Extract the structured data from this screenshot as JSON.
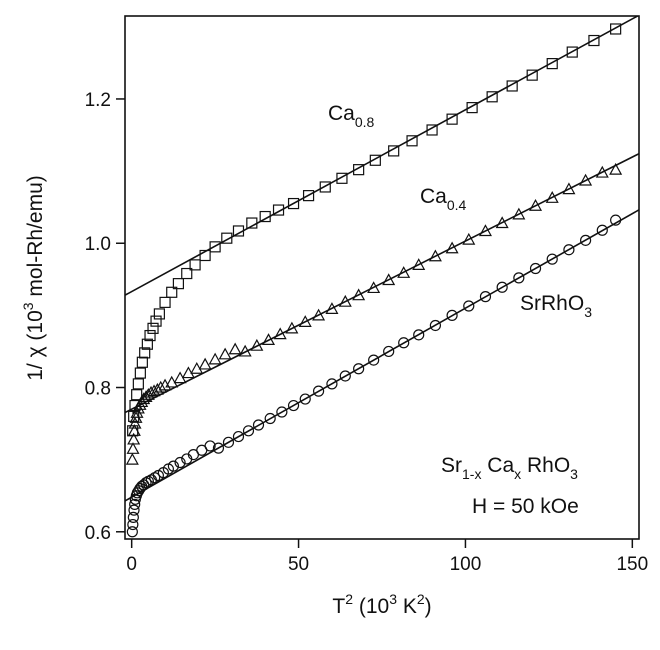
{
  "chart_data": {
    "type": "scatter",
    "title": "",
    "xlabel": {
      "base": "T",
      "sup1": "2",
      "paren_open": " (10",
      "sup2": "3",
      "unit": " K",
      "sup3": "2",
      "paren_close": ")"
    },
    "ylabel": {
      "pre": "1/ χ  (10",
      "sup": "3",
      "post": " mol-Rh/emu)"
    },
    "xlim": [
      -2,
      152
    ],
    "ylim": [
      0.59,
      1.315
    ],
    "x_ticks": [
      0,
      50,
      100,
      150
    ],
    "x_tick_labels": [
      "0",
      "50",
      "100",
      "150"
    ],
    "y_ticks": [
      0.6,
      0.8,
      1.0,
      1.2
    ],
    "y_tick_labels": [
      "0.6",
      "0.8",
      "1.0",
      "1.2"
    ],
    "grid": false,
    "legend": "none",
    "series": [
      {
        "label_base": "Ca",
        "label_sub": "0.8",
        "marker": "square",
        "fit": {
          "slope": 0.00252,
          "intercept": 0.933
        },
        "x": [
          0.3,
          0.6,
          1.0,
          1.5,
          2.0,
          2.6,
          3.2,
          3.9,
          4.7,
          5.5,
          6.4,
          7.3,
          8.3,
          10.0,
          12.0,
          14.0,
          16.5,
          19.0,
          22.0,
          25.0,
          28.5,
          32.0,
          36.0,
          40.0,
          44.0,
          48.5,
          53.0,
          58.0,
          63.0,
          68.0,
          73.0,
          78.5,
          84.0,
          90.0,
          96.0,
          102.0,
          108.0,
          114.0,
          120.0,
          126.0,
          132.0,
          138.5,
          145.0
        ],
        "y": [
          0.74,
          0.76,
          0.775,
          0.79,
          0.805,
          0.82,
          0.835,
          0.848,
          0.86,
          0.872,
          0.882,
          0.892,
          0.902,
          0.918,
          0.932,
          0.944,
          0.958,
          0.97,
          0.983,
          0.995,
          1.007,
          1.017,
          1.028,
          1.037,
          1.046,
          1.055,
          1.066,
          1.078,
          1.09,
          1.102,
          1.115,
          1.128,
          1.142,
          1.157,
          1.172,
          1.188,
          1.203,
          1.218,
          1.233,
          1.249,
          1.265,
          1.281,
          1.297
        ]
      },
      {
        "label_base": "Ca",
        "label_sub": "0.4",
        "marker": "triangle",
        "fit": {
          "slope": 0.00233,
          "intercept": 0.77
        },
        "x": [
          0.2,
          0.4,
          0.6,
          0.8,
          1.0,
          1.3,
          1.6,
          2.0,
          2.5,
          3.0,
          3.6,
          4.3,
          5.0,
          5.8,
          6.7,
          7.7,
          8.7,
          10.0,
          12.0,
          14.5,
          17.0,
          19.5,
          22.0,
          25.0,
          28.0,
          31.0,
          34.0,
          37.5,
          41.0,
          44.5,
          48.0,
          52.0,
          56.0,
          60.0,
          64.0,
          68.0,
          72.5,
          77.0,
          81.5,
          86.0,
          91.0,
          96.0,
          101.0,
          106.0,
          111.0,
          116.0,
          121.0,
          126.0,
          131.0,
          136.0,
          141.0,
          145.0
        ],
        "y": [
          0.7,
          0.715,
          0.728,
          0.74,
          0.75,
          0.758,
          0.765,
          0.771,
          0.776,
          0.78,
          0.784,
          0.787,
          0.79,
          0.793,
          0.795,
          0.797,
          0.8,
          0.803,
          0.807,
          0.813,
          0.82,
          0.826,
          0.832,
          0.839,
          0.846,
          0.853,
          0.85,
          0.858,
          0.866,
          0.874,
          0.882,
          0.891,
          0.9,
          0.909,
          0.919,
          0.928,
          0.938,
          0.949,
          0.959,
          0.97,
          0.982,
          0.993,
          1.005,
          1.017,
          1.028,
          1.04,
          1.052,
          1.063,
          1.075,
          1.087,
          1.098,
          1.102
        ]
      },
      {
        "label_base": "SrRhO",
        "label_sub": "3",
        "marker": "circle",
        "fit": {
          "slope": 0.00262,
          "intercept": 0.648
        },
        "x": [
          0.2,
          0.35,
          0.5,
          0.7,
          0.9,
          1.1,
          1.4,
          1.7,
          2.1,
          2.5,
          3.0,
          3.6,
          4.3,
          5.0,
          5.9,
          6.9,
          8.0,
          9.5,
          11.0,
          12.5,
          14.5,
          16.5,
          18.5,
          21.0,
          23.5,
          26.0,
          29.0,
          32.0,
          35.0,
          38.0,
          41.5,
          45.0,
          48.5,
          52.0,
          56.0,
          60.0,
          64.0,
          68.0,
          72.5,
          77.0,
          81.5,
          86.0,
          91.0,
          96.0,
          101.0,
          106.0,
          111.0,
          116.0,
          121.0,
          126.0,
          131.0,
          136.0,
          141.0,
          145.0
        ],
        "y": [
          0.6,
          0.61,
          0.62,
          0.63,
          0.638,
          0.645,
          0.65,
          0.654,
          0.657,
          0.66,
          0.663,
          0.665,
          0.668,
          0.67,
          0.672,
          0.675,
          0.678,
          0.682,
          0.687,
          0.691,
          0.696,
          0.701,
          0.707,
          0.713,
          0.719,
          0.716,
          0.724,
          0.732,
          0.74,
          0.748,
          0.757,
          0.766,
          0.775,
          0.784,
          0.795,
          0.805,
          0.816,
          0.826,
          0.838,
          0.85,
          0.862,
          0.873,
          0.886,
          0.9,
          0.913,
          0.926,
          0.939,
          0.952,
          0.965,
          0.978,
          0.991,
          1.004,
          1.018,
          1.032
        ]
      }
    ],
    "annotation": {
      "line1_a": "Sr",
      "line1_a_sub": "1-x",
      "line1_b": " Ca",
      "line1_b_sub": "x",
      "line1_c": " RhO",
      "line1_c_sub": "3",
      "line2": "H = 50 kOe"
    }
  }
}
